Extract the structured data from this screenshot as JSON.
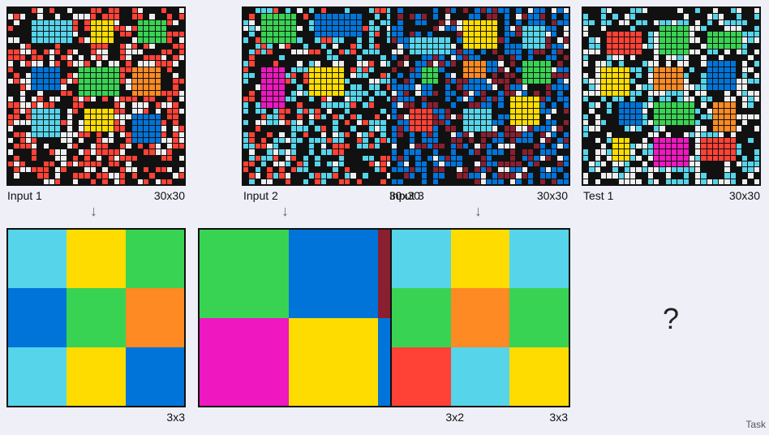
{
  "palette": {
    "0": "#111111",
    "1": "#0074d9",
    "2": "#ff4136",
    "3": "#2ecc40",
    "4": "#ffdc00",
    "5": "#aaaaaa",
    "6": "#f012be",
    "7": "#ff851b",
    "8": "#7fdbff",
    "9": "#870c25",
    "W": "#eeeeee"
  },
  "colors": {
    "background": "#eeeff7",
    "border": "#111111",
    "black": "#111111",
    "white": "#eeeeee",
    "red": "#ff4136",
    "blue": "#0074d9",
    "cyan": "#56d4ea",
    "green": "#39d353",
    "yellow": "#ffdc00",
    "orange": "#fd8a22",
    "magenta": "#ee17c0",
    "maroon": "#8a1f2f"
  },
  "inputs": [
    {
      "label": "Input 1",
      "size": "30x30"
    },
    {
      "label": "Input 2",
      "size": "30x30"
    },
    {
      "label": "Input 3",
      "size": "30x30"
    },
    {
      "label": "Test 1",
      "size": "30x30"
    }
  ],
  "outputs": [
    {
      "size": "3x3",
      "cells": [
        [
          "cyan",
          "yellow",
          "green"
        ],
        [
          "blue",
          "green",
          "orange"
        ],
        [
          "cyan",
          "yellow",
          "blue"
        ]
      ]
    },
    {
      "size": "3x2",
      "cells": [
        [
          "green",
          "blue",
          "maroon"
        ],
        [
          "magenta",
          "yellow",
          "blue"
        ]
      ]
    },
    {
      "size": "3x3",
      "cells": [
        [
          "cyan",
          "yellow",
          "cyan"
        ],
        [
          "green",
          "orange",
          "green"
        ],
        [
          "red",
          "cyan",
          "yellow"
        ]
      ]
    }
  ],
  "question_mark": "?",
  "footer_label": "Task",
  "arrow_icon": "down-arrow-icon"
}
